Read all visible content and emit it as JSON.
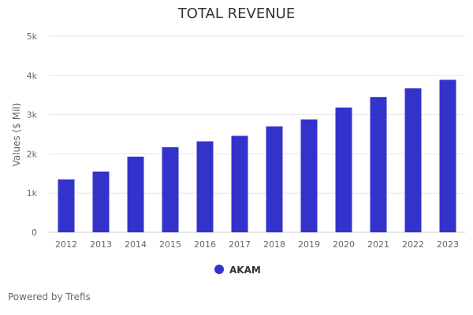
{
  "chart_data": {
    "type": "bar",
    "title": "TOTAL REVENUE",
    "ylabel": "Values ($ Mil)",
    "xlabel": "",
    "categories": [
      "2012",
      "2013",
      "2014",
      "2015",
      "2016",
      "2017",
      "2018",
      "2019",
      "2020",
      "2021",
      "2022",
      "2023"
    ],
    "series": [
      {
        "name": "AKAM",
        "color": "#3333cc",
        "values": [
          1350,
          1550,
          1930,
          2170,
          2320,
          2460,
          2700,
          2880,
          3180,
          3450,
          3670,
          3890
        ]
      }
    ],
    "ylim": [
      0,
      5000
    ],
    "yticks": [
      0,
      1000,
      2000,
      3000,
      4000,
      5000
    ],
    "ytick_labels": [
      "0",
      "1k",
      "2k",
      "3k",
      "4k",
      "5k"
    ],
    "grid": true,
    "legend_position": "bottom"
  },
  "footer": {
    "credit": "Powered by Trefis"
  }
}
